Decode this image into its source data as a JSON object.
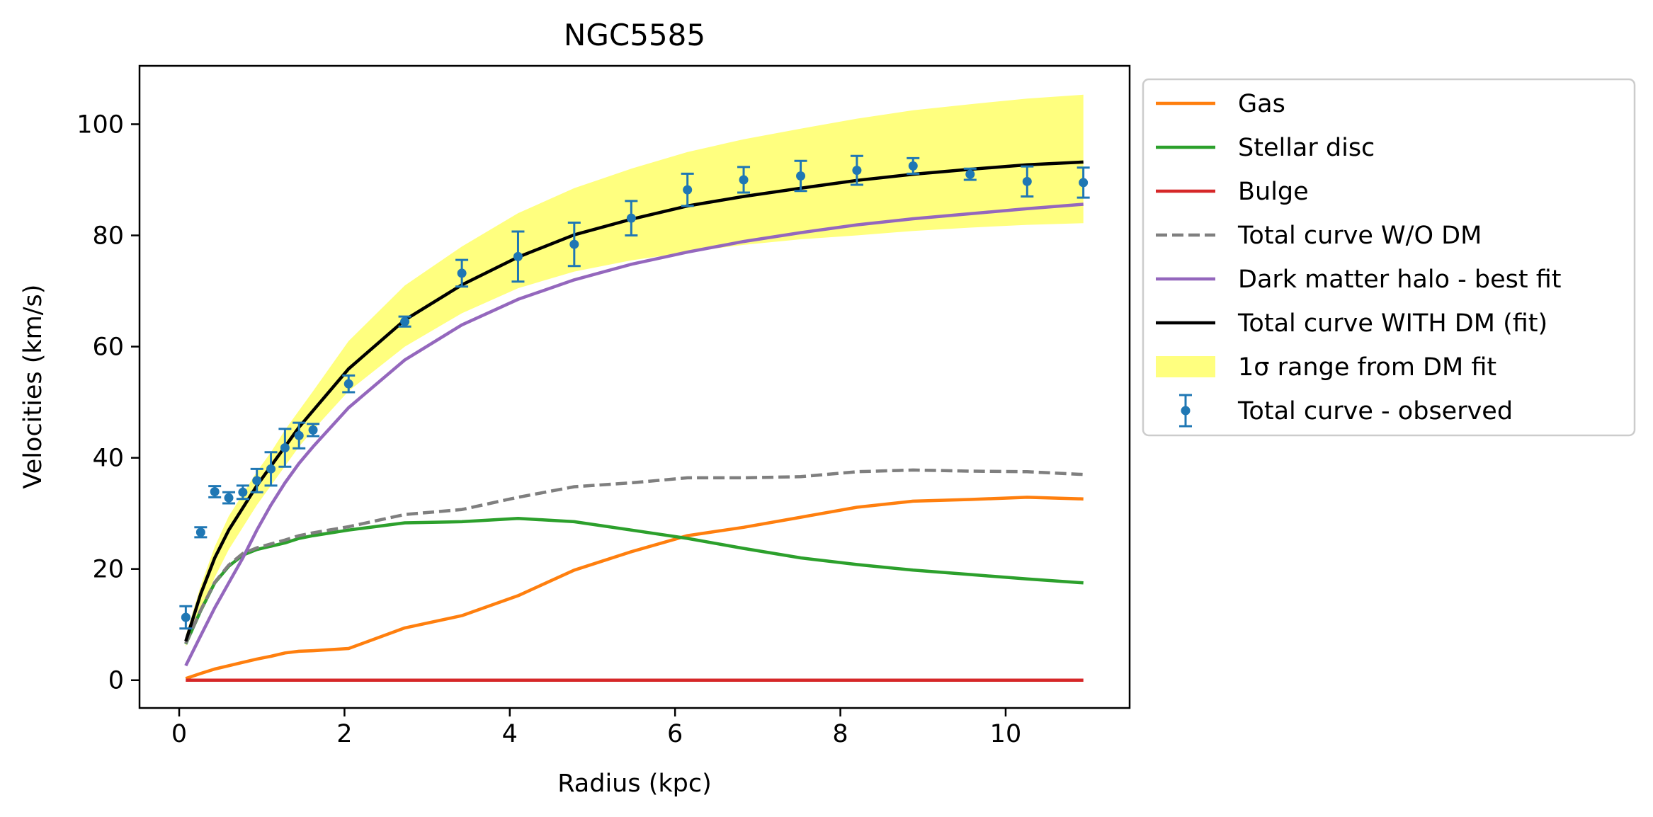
{
  "chart_data": {
    "type": "line",
    "title": "NGC5585",
    "xlabel": "Radius (kpc)",
    "ylabel": "Velocities (km/s)",
    "xlim": [
      -0.48,
      11.5
    ],
    "ylim": [
      -5,
      110.5
    ],
    "xticks": [
      0,
      2,
      4,
      6,
      8,
      10
    ],
    "yticks": [
      0,
      20,
      40,
      60,
      80,
      100
    ],
    "xtick_labels": [
      "0",
      "2",
      "4",
      "6",
      "8",
      "10"
    ],
    "ytick_labels": [
      "0",
      "20",
      "40",
      "60",
      "80",
      "100"
    ],
    "grid": false,
    "legend_position": "outside-right-top",
    "x": [
      0.08,
      0.26,
      0.43,
      0.6,
      0.77,
      0.94,
      1.11,
      1.28,
      1.45,
      1.62,
      2.05,
      2.73,
      3.42,
      4.1,
      4.78,
      5.47,
      6.15,
      6.83,
      7.52,
      8.2,
      8.88,
      9.57,
      10.26,
      10.94
    ],
    "series": [
      {
        "name": "Gas",
        "kind": "line",
        "color": "#ff7f0e",
        "values": [
          0.3,
          1.2,
          2.0,
          2.6,
          3.2,
          3.8,
          4.3,
          4.9,
          5.2,
          5.3,
          5.7,
          9.4,
          11.6,
          15.2,
          19.8,
          23.1,
          26.0,
          27.5,
          29.3,
          31.1,
          32.2,
          32.5,
          32.9,
          32.6
        ]
      },
      {
        "name": "Stellar disc",
        "kind": "line",
        "color": "#2ca02c",
        "values": [
          6.5,
          12.5,
          17.5,
          20.5,
          22.5,
          23.5,
          24.1,
          24.7,
          25.5,
          26.0,
          27.0,
          28.3,
          28.5,
          29.1,
          28.5,
          27.0,
          25.5,
          23.7,
          22.0,
          20.8,
          19.8,
          19.0,
          18.2,
          17.5
        ]
      },
      {
        "name": "Bulge",
        "kind": "line",
        "color": "#d62728",
        "values": [
          0,
          0,
          0,
          0,
          0,
          0,
          0,
          0,
          0,
          0,
          0,
          0,
          0,
          0,
          0,
          0,
          0,
          0,
          0,
          0,
          0,
          0,
          0,
          0
        ]
      },
      {
        "name": "Total curve W/O DM",
        "kind": "dashed",
        "color": "#7f7f7f",
        "values": [
          6.6,
          12.6,
          17.6,
          20.7,
          22.8,
          23.8,
          24.5,
          25.2,
          26.0,
          26.5,
          27.6,
          29.8,
          30.7,
          32.9,
          34.8,
          35.5,
          36.4,
          36.4,
          36.6,
          37.5,
          37.8,
          37.6,
          37.5,
          37.0
        ]
      },
      {
        "name": "Dark matter halo - best fit",
        "kind": "line",
        "color": "#9467bd",
        "values": [
          2.6,
          8.0,
          13.0,
          17.5,
          22.0,
          27.0,
          31.5,
          35.5,
          39.0,
          42.0,
          49.0,
          57.6,
          63.9,
          68.5,
          72.0,
          74.8,
          77.0,
          78.9,
          80.5,
          81.9,
          83.0,
          83.9,
          84.8,
          85.6
        ]
      },
      {
        "name": "Total curve WITH DM (fit)",
        "kind": "line",
        "color": "#000000",
        "values": [
          7.0,
          15.5,
          22.0,
          27.0,
          31.0,
          35.0,
          38.5,
          42.0,
          45.5,
          48.5,
          56.0,
          64.8,
          71.1,
          76.1,
          80.1,
          82.9,
          85.3,
          87.0,
          88.5,
          89.9,
          91.0,
          91.9,
          92.7,
          93.2
        ]
      }
    ],
    "band": {
      "name": "1σ range from DM fit",
      "color": "#ffff7f",
      "x": [
        0.08,
        0.26,
        0.43,
        0.6,
        0.77,
        0.94,
        1.11,
        1.28,
        1.45,
        1.62,
        2.05,
        2.73,
        3.42,
        4.1,
        4.78,
        5.47,
        6.15,
        6.83,
        7.52,
        8.2,
        8.88,
        9.57,
        10.26,
        10.94
      ],
      "lower": [
        6.0,
        12.5,
        18.5,
        23.5,
        27.5,
        31.5,
        35.0,
        38.5,
        42.0,
        45.0,
        52.0,
        60.0,
        66.0,
        70.5,
        73.5,
        75.5,
        77.0,
        78.3,
        79.3,
        80.0,
        80.8,
        81.4,
        81.9,
        82.2
      ],
      "upper": [
        8.0,
        17.0,
        24.0,
        29.5,
        33.5,
        37.5,
        41.0,
        45.0,
        48.5,
        52.0,
        61.0,
        71.0,
        78.0,
        84.0,
        88.5,
        92.0,
        95.0,
        97.3,
        99.2,
        101.0,
        102.5,
        103.6,
        104.6,
        105.3
      ]
    },
    "observed": {
      "name": "Total curve - observed",
      "color": "#1f77b4",
      "x": [
        0.08,
        0.26,
        0.43,
        0.6,
        0.77,
        0.94,
        1.11,
        1.28,
        1.45,
        1.62,
        2.05,
        2.73,
        3.42,
        4.1,
        4.78,
        5.47,
        6.15,
        6.83,
        7.52,
        8.2,
        8.88,
        9.57,
        10.26,
        10.94
      ],
      "y": [
        11.3,
        26.6,
        33.9,
        32.8,
        33.8,
        35.9,
        38.0,
        41.8,
        44.0,
        45.0,
        53.3,
        64.5,
        73.2,
        76.2,
        78.4,
        83.1,
        88.2,
        90.0,
        90.7,
        91.7,
        92.5,
        91.0,
        89.7,
        89.5
      ],
      "err": [
        2.0,
        0.9,
        1.0,
        1.0,
        1.2,
        2.1,
        3.0,
        3.4,
        2.3,
        1.1,
        1.5,
        0.9,
        2.4,
        4.5,
        3.9,
        3.1,
        2.9,
        2.3,
        2.7,
        2.6,
        1.4,
        1.0,
        2.7,
        2.7
      ]
    }
  }
}
